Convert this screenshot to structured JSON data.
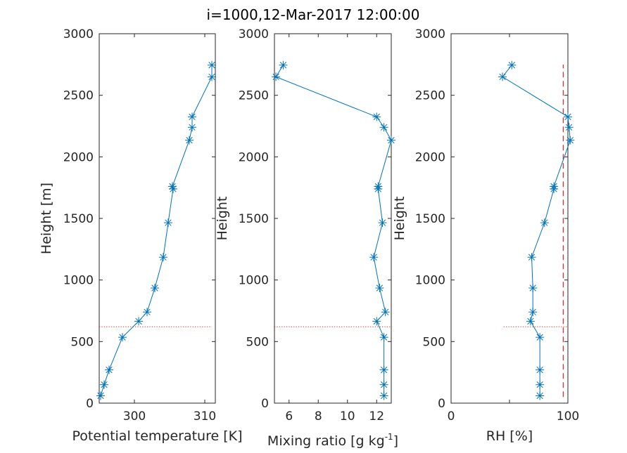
{
  "chart_data": {
    "title": "i=1000,12-Mar-2017 12:00:00",
    "panels": [
      {
        "type": "line",
        "xlabel": "Potential temperature [K]",
        "xlabel_parts": [
          "Potential temperature [K]"
        ],
        "ylabel": "Height [m]",
        "xlim": [
          295,
          311.5
        ],
        "ylim": [
          0,
          3000
        ],
        "xticks": [
          300,
          310
        ],
        "yticks": [
          0,
          500,
          1000,
          1500,
          2000,
          2500,
          3000
        ],
        "series": {
          "x": [
            295.2,
            295.7,
            296.4,
            298.3,
            300.6,
            301.8,
            302.9,
            304.1,
            304.8,
            305.5,
            305.4,
            307.8,
            308.2,
            308.2,
            311.0,
            311.0
          ],
          "y": [
            60,
            150,
            270,
            535,
            665,
            740,
            935,
            1185,
            1465,
            1740,
            1760,
            2135,
            2240,
            2325,
            2650,
            2745
          ]
        },
        "hline": {
          "y": 620,
          "xrange": [
            295,
            311.0
          ],
          "color": "#d62728",
          "style": "dotted"
        }
      },
      {
        "type": "line",
        "xlabel": "Mixing ratio [g kg-1]",
        "xlabel_parts": [
          "Mixing ratio [g kg",
          "-1",
          "]"
        ],
        "ylabel": "Height",
        "xlim": [
          5,
          13
        ],
        "ylim": [
          0,
          3000
        ],
        "xticks": [
          6,
          8,
          10,
          12
        ],
        "yticks": [
          0,
          500,
          1000,
          1500,
          2000,
          2500,
          3000
        ],
        "series": {
          "x": [
            12.5,
            12.5,
            12.5,
            12.5,
            12.0,
            12.6,
            12.2,
            11.8,
            12.4,
            12.1,
            12.1,
            13.0,
            12.5,
            12.0,
            5.1,
            5.6
          ],
          "y": [
            60,
            150,
            270,
            535,
            665,
            740,
            935,
            1185,
            1465,
            1740,
            1760,
            2135,
            2240,
            2325,
            2650,
            2745
          ]
        },
        "hline": {
          "y": 620,
          "xrange": [
            5,
            13
          ],
          "color": "#d62728",
          "style": "dotted"
        }
      },
      {
        "type": "line",
        "xlabel": "RH [%]",
        "xlabel_parts": [
          "RH [%]"
        ],
        "ylabel": "Height",
        "xlim": [
          0,
          100
        ],
        "ylim": [
          0,
          3000
        ],
        "xticks": [
          0,
          50,
          100
        ],
        "xticklabels": [
          "0",
          "",
          "100"
        ],
        "yticks": [
          0,
          500,
          1000,
          1500,
          2000,
          2500,
          3000
        ],
        "series": {
          "x": [
            76,
            76,
            76,
            76,
            68,
            70,
            70,
            69,
            80,
            88,
            88,
            102,
            101,
            100,
            44,
            52
          ],
          "y": [
            60,
            150,
            270,
            535,
            665,
            740,
            935,
            1185,
            1465,
            1740,
            1760,
            2135,
            2240,
            2325,
            2650,
            2745
          ]
        },
        "hline": {
          "y": 620,
          "xrange": [
            45,
            100
          ],
          "color": "#d62728",
          "style": "dotted"
        },
        "vline": {
          "x": 96,
          "yrange": [
            50,
            2750
          ],
          "color": "#d62728",
          "style": "dashed"
        }
      }
    ],
    "colors": {
      "series": "#0072bd",
      "reference": "#d62728",
      "axis": "#262626"
    }
  }
}
